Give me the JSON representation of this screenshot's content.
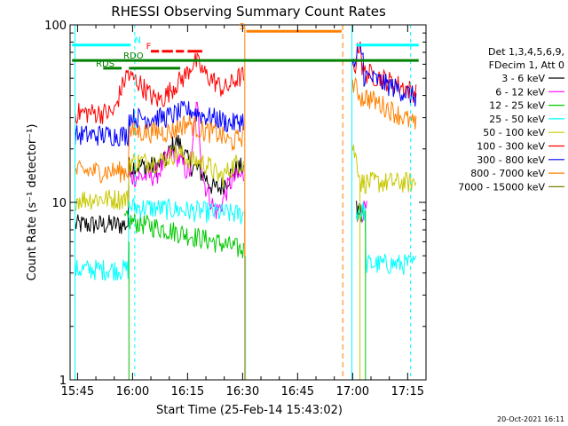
{
  "chart_data": {
    "type": "line",
    "title": "RHESSI Observing Summary Count Rates",
    "xlabel": "Start Time (25-Feb-14 15:43:02)",
    "ylabel": "Count Rate (s⁻¹ detector⁻¹)",
    "y_scale": "log",
    "ylim": [
      1,
      100
    ],
    "xlim_minutes": [
      -2.03,
      95
    ],
    "x_tick_labels": [
      {
        "label": "15:45",
        "minute": 0
      },
      {
        "label": "16:00",
        "minute": 15
      },
      {
        "label": "16:15",
        "minute": 30
      },
      {
        "label": "16:30",
        "minute": 45
      },
      {
        "label": "16:45",
        "minute": 60
      },
      {
        "label": "17:00",
        "minute": 75
      },
      {
        "label": "17:15",
        "minute": 90
      }
    ],
    "y_tick_labels": [
      {
        "label": "1",
        "value": 1
      },
      {
        "label": "10",
        "value": 10
      },
      {
        "label": "100",
        "value": 100
      }
    ],
    "legend_header": [
      "Det 1,3,4,5,6,9,",
      "FDecim 1, Att 0"
    ],
    "legend_position": "right",
    "series": [
      {
        "name": "3 - 6 keV",
        "color": "#000000"
      },
      {
        "name": "6 - 12 keV",
        "color": "#ff00ff"
      },
      {
        "name": "12 - 25 keV",
        "color": "#00c800"
      },
      {
        "name": "25 - 50 keV",
        "color": "#00ffff"
      },
      {
        "name": "50 - 100 keV",
        "color": "#c8c800"
      },
      {
        "name": "100 - 300 keV",
        "color": "#ff0000"
      },
      {
        "name": "300 - 800 keV",
        "color": "#0000ff"
      },
      {
        "name": "800 - 7000 keV",
        "color": "#ff8000"
      },
      {
        "name": "7000 - 15000 keV",
        "color": "#808000"
      }
    ],
    "flag_bars": [
      {
        "label": "N",
        "color": "#00ffff",
        "level": 77
      },
      {
        "label": "F",
        "color": "#ff0000",
        "level": 71
      },
      {
        "label": "S",
        "color": "#ff8000",
        "level": 92
      },
      {
        "label": "RDO",
        "color": "#008000",
        "level": 63
      },
      {
        "label": "RDS",
        "color": "#008000",
        "level": 57
      }
    ],
    "footer_date": "20-Oct-2021 16:11"
  }
}
